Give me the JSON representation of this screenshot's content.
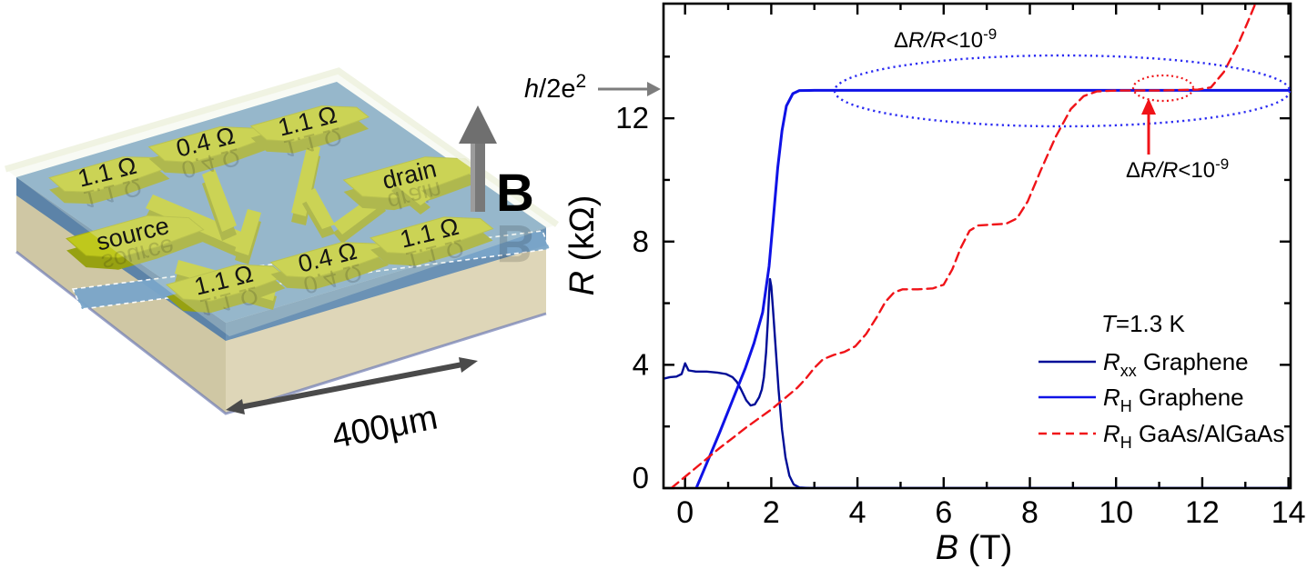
{
  "figure": {
    "description": "Quantum Hall resistance standard figure: Hall-bar device render and R vs B plot"
  },
  "device_panel": {
    "contacts": [
      {
        "label": "1.1 Ω"
      },
      {
        "label": "0.4 Ω"
      },
      {
        "label": "1.1 Ω"
      },
      {
        "label": "drain"
      },
      {
        "label": "source"
      },
      {
        "label": "1.1 Ω"
      },
      {
        "label": "0.4 Ω"
      },
      {
        "label": "1.1 Ω"
      }
    ],
    "field_label": "B",
    "scale_label": "400μm",
    "pad_color": "#bfc81c",
    "pad_edge_color": "#97a112"
  },
  "chart": {
    "ylabel_sym": "R",
    "ylabel_rest": " (kΩ)",
    "xlabel_sym": "B",
    "xlabel_rest": " (T)",
    "temp_sym": "T",
    "temp_rest": "=1.3 K",
    "plateau_p1": "h",
    "plateau_p2": "/2e",
    "plateau_sup": "2",
    "ann_blue": {
      "p1": "Δ",
      "p2": "R/R",
      "p3": "<10",
      "sup": "-9",
      "color": "#2a2af2"
    },
    "ann_red": {
      "p1": "Δ",
      "p2": "R/R",
      "p3": "<10",
      "sup": "-9",
      "color": "#f01318"
    },
    "legend": [
      {
        "sym": "R",
        "sub": "xx",
        "name": " Graphene",
        "color": "#000d97",
        "dash": false
      },
      {
        "sym": "R",
        "sub": "H",
        "name": " Graphene",
        "color": "#0f12e6",
        "dash": false
      },
      {
        "sym": "R",
        "sub": "H",
        "name": " GaAs/AlGaAs",
        "color": "#f01318",
        "dash": true
      }
    ]
  },
  "chart_data": {
    "type": "line",
    "title": "Quantized Hall resistance vs magnetic field",
    "xlabel": "B (T)",
    "ylabel": "R (kΩ)",
    "xlim": [
      -0.5,
      14.05
    ],
    "ylim": [
      0,
      15.72
    ],
    "x_ticks": [
      0,
      2,
      4,
      6,
      8,
      10,
      12,
      14
    ],
    "x_minor": [
      1,
      3,
      5,
      7,
      9,
      11,
      13
    ],
    "y_ticks": [
      0,
      4,
      8,
      12
    ],
    "y_minor": [
      2,
      6,
      10,
      14
    ],
    "grid": false,
    "legend_position": "lower right",
    "plateau_value_kohm": 12.906,
    "annotations": [
      "h/2e²",
      "ΔR/R<10⁻⁹ (graphene plateau)",
      "ΔR/R<10⁻⁹ (GaAs plateau)",
      "T=1.3 K"
    ],
    "series": [
      {
        "name": "Rxx Graphene",
        "color": "#000d97",
        "style": "solid",
        "points": [
          [
            -0.5,
            3.55
          ],
          [
            -0.35,
            3.6
          ],
          [
            -0.2,
            3.62
          ],
          [
            -0.08,
            3.7
          ],
          [
            0,
            4.05
          ],
          [
            0.08,
            3.82
          ],
          [
            0.25,
            3.78
          ],
          [
            0.5,
            3.78
          ],
          [
            0.75,
            3.75
          ],
          [
            0.95,
            3.7
          ],
          [
            1.1,
            3.6
          ],
          [
            1.2,
            3.45
          ],
          [
            1.3,
            3.2
          ],
          [
            1.42,
            2.85
          ],
          [
            1.52,
            2.68
          ],
          [
            1.62,
            2.72
          ],
          [
            1.72,
            2.95
          ],
          [
            1.78,
            3.2
          ],
          [
            1.83,
            3.6
          ],
          [
            1.88,
            4.4
          ],
          [
            1.92,
            5.4
          ],
          [
            1.95,
            6.3
          ],
          [
            1.97,
            6.78
          ],
          [
            2.0,
            6.55
          ],
          [
            2.04,
            5.8
          ],
          [
            2.1,
            4.6
          ],
          [
            2.17,
            3.2
          ],
          [
            2.25,
            1.9
          ],
          [
            2.33,
            1.0
          ],
          [
            2.42,
            0.4
          ],
          [
            2.52,
            0.12
          ],
          [
            2.65,
            0.02
          ],
          [
            2.9,
            0
          ],
          [
            14,
            0
          ]
        ]
      },
      {
        "name": "RH Graphene",
        "color": "#0f12e6",
        "style": "solid",
        "points": [
          [
            0.26,
            0
          ],
          [
            0.5,
            0.8
          ],
          [
            0.8,
            1.8
          ],
          [
            1.1,
            2.85
          ],
          [
            1.4,
            3.9
          ],
          [
            1.6,
            4.7
          ],
          [
            1.8,
            5.7
          ],
          [
            1.95,
            7.2
          ],
          [
            2.05,
            8.8
          ],
          [
            2.15,
            10.4
          ],
          [
            2.25,
            11.6
          ],
          [
            2.35,
            12.4
          ],
          [
            2.5,
            12.8
          ],
          [
            2.65,
            12.9
          ],
          [
            3.0,
            12.906
          ],
          [
            14,
            12.906
          ]
        ]
      },
      {
        "name": "RH GaAs/AlGaAs",
        "color": "#f01318",
        "style": "dashed",
        "points": [
          [
            -0.32,
            0
          ],
          [
            -0.1,
            0.25
          ],
          [
            0.2,
            0.6
          ],
          [
            0.5,
            0.95
          ],
          [
            0.8,
            1.3
          ],
          [
            1.1,
            1.62
          ],
          [
            1.4,
            1.95
          ],
          [
            1.7,
            2.25
          ],
          [
            2.0,
            2.55
          ],
          [
            2.3,
            2.9
          ],
          [
            2.6,
            3.25
          ],
          [
            2.8,
            3.55
          ],
          [
            3.0,
            3.9
          ],
          [
            3.2,
            4.18
          ],
          [
            3.45,
            4.32
          ],
          [
            3.7,
            4.42
          ],
          [
            3.95,
            4.6
          ],
          [
            4.2,
            5.0
          ],
          [
            4.45,
            5.55
          ],
          [
            4.65,
            6.05
          ],
          [
            4.85,
            6.35
          ],
          [
            5.05,
            6.45
          ],
          [
            5.4,
            6.45
          ],
          [
            5.75,
            6.48
          ],
          [
            6.0,
            6.6
          ],
          [
            6.2,
            7.1
          ],
          [
            6.4,
            7.8
          ],
          [
            6.6,
            8.35
          ],
          [
            6.8,
            8.52
          ],
          [
            7.1,
            8.55
          ],
          [
            7.45,
            8.58
          ],
          [
            7.7,
            8.75
          ],
          [
            7.95,
            9.3
          ],
          [
            8.25,
            10.3
          ],
          [
            8.6,
            11.4
          ],
          [
            8.95,
            12.3
          ],
          [
            9.25,
            12.72
          ],
          [
            9.55,
            12.87
          ],
          [
            10.0,
            12.9
          ],
          [
            11.0,
            12.9
          ],
          [
            11.9,
            12.93
          ],
          [
            12.2,
            13.0
          ],
          [
            12.5,
            13.5
          ],
          [
            12.8,
            14.3
          ],
          [
            13.05,
            15.1
          ],
          [
            13.3,
            15.95
          ]
        ]
      }
    ]
  }
}
